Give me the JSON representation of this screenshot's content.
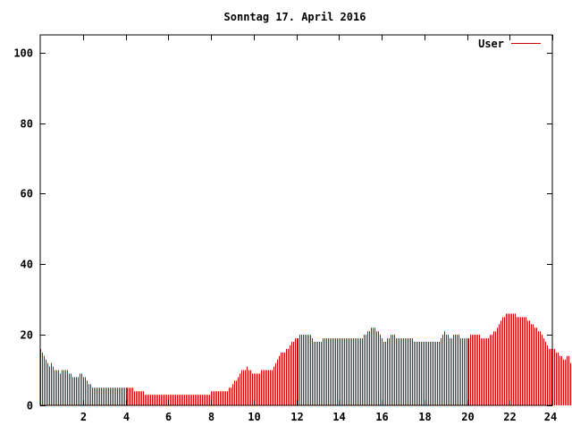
{
  "chart_data": {
    "type": "bar",
    "title": "Sonntag 17. April 2016",
    "xlabel": "",
    "ylabel": "",
    "xlim": [
      0,
      24
    ],
    "ylim": [
      0,
      105
    ],
    "x_ticks": [
      "2",
      "4",
      "6",
      "8",
      "10",
      "12",
      "14",
      "16",
      "18",
      "20",
      "22",
      "24"
    ],
    "y_ticks": [
      "0",
      "20",
      "40",
      "60",
      "80",
      "100"
    ],
    "grid": false,
    "legend": "top-right",
    "series": [
      {
        "name": "User",
        "color": "#cc0000",
        "interval_minutes": 5,
        "values": [
          16,
          15,
          14,
          13,
          12,
          11,
          12,
          11,
          10,
          10,
          10,
          9,
          10,
          10,
          10,
          10,
          9,
          9,
          8,
          8,
          8,
          8,
          9,
          9,
          8,
          8,
          7,
          6,
          6,
          5,
          5,
          5,
          5,
          5,
          5,
          5,
          5,
          5,
          5,
          5,
          5,
          5,
          5,
          5,
          5,
          5,
          5,
          5,
          5,
          5,
          5,
          5,
          5,
          4,
          4,
          4,
          4,
          4,
          4,
          3,
          3,
          3,
          3,
          3,
          3,
          3,
          3,
          3,
          3,
          3,
          3,
          3,
          3,
          3,
          3,
          3,
          3,
          3,
          3,
          3,
          3,
          3,
          3,
          3,
          3,
          3,
          3,
          3,
          3,
          3,
          3,
          3,
          3,
          3,
          3,
          3,
          4,
          4,
          4,
          4,
          4,
          4,
          4,
          4,
          4,
          4,
          5,
          5,
          6,
          7,
          7,
          8,
          9,
          10,
          10,
          10,
          11,
          10,
          10,
          9,
          9,
          9,
          9,
          9,
          10,
          10,
          10,
          10,
          10,
          10,
          10,
          11,
          12,
          13,
          14,
          15,
          15,
          15,
          16,
          16,
          17,
          18,
          18,
          19,
          19,
          19,
          20,
          20,
          20,
          20,
          20,
          20,
          20,
          19,
          18,
          18,
          18,
          18,
          18,
          19,
          19,
          19,
          19,
          19,
          19,
          19,
          19,
          19,
          19,
          19,
          19,
          19,
          19,
          19,
          19,
          19,
          19,
          19,
          19,
          19,
          19,
          19,
          20,
          20,
          21,
          21,
          22,
          22,
          22,
          21,
          21,
          20,
          19,
          18,
          18,
          19,
          19,
          20,
          20,
          20,
          19,
          19,
          19,
          19,
          19,
          19,
          19,
          19,
          19,
          19,
          18,
          18,
          18,
          18,
          18,
          18,
          18,
          18,
          18,
          18,
          18,
          18,
          18,
          18,
          18,
          19,
          20,
          21,
          20,
          20,
          19,
          19,
          20,
          20,
          20,
          20,
          19,
          19,
          19,
          19,
          19,
          19,
          20,
          20,
          20,
          20,
          20,
          20,
          19,
          19,
          19,
          19,
          19,
          20,
          20,
          21,
          21,
          22,
          23,
          24,
          25,
          25,
          26,
          26,
          26,
          26,
          26,
          26,
          25,
          25,
          25,
          25,
          25,
          25,
          24,
          24,
          23,
          23,
          22,
          22,
          21,
          21,
          20,
          19,
          18,
          17,
          16,
          16,
          16,
          16,
          15,
          15,
          14,
          14,
          13,
          13,
          14,
          14,
          12,
          12
        ]
      }
    ]
  }
}
